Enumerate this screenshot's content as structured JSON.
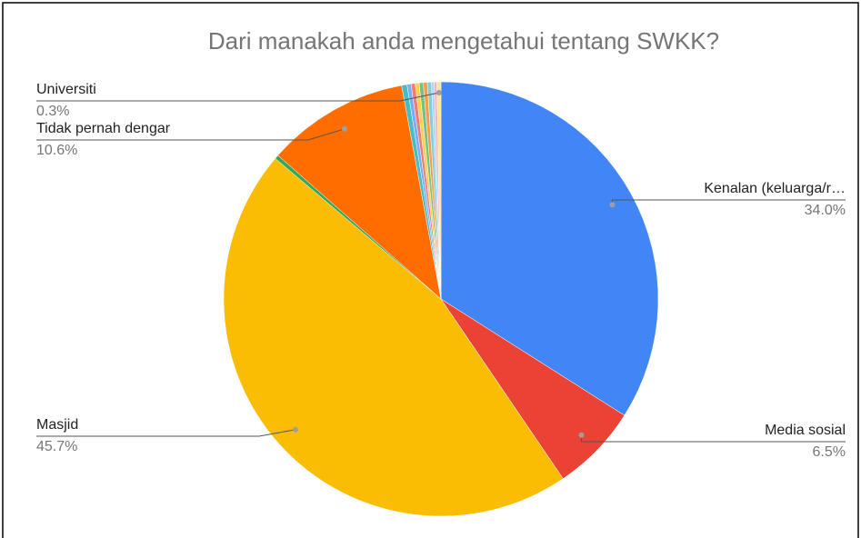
{
  "chart_data": {
    "type": "pie",
    "title": "Dari manakah anda mengetahui tentang SWKK?",
    "categories": [
      "Kenalan (keluarga/r…",
      "Media sosial",
      "Masjid",
      null,
      "Tidak pernah dengar",
      null,
      null,
      null,
      null,
      null,
      null,
      null,
      null,
      null,
      "Universiti"
    ],
    "values": [
      34.0,
      6.5,
      45.7,
      0.3,
      10.6,
      0.4,
      0.3,
      0.3,
      0.3,
      0.3,
      0.3,
      0.3,
      0.2,
      0.2,
      0.3
    ],
    "value_labels": [
      "34.0%",
      "6.5%",
      "45.7%",
      null,
      "10.6%",
      null,
      null,
      null,
      null,
      null,
      null,
      null,
      null,
      null,
      "0.3%"
    ],
    "colors": [
      "#4285f4",
      "#ea4335",
      "#fbbc04",
      "#34a853",
      "#ff6d01",
      "#46bdc6",
      "#7baaf7",
      "#f07b72",
      "#fcd04f",
      "#71c287",
      "#ff994d",
      "#7ed1d7",
      "#b3cefb",
      "#f7b4ae",
      "#fde49b"
    ]
  }
}
